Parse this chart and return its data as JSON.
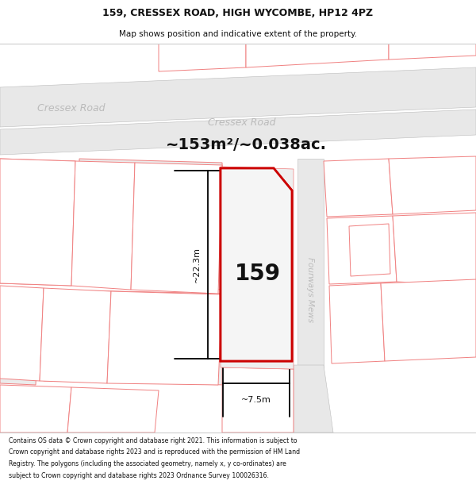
{
  "title_line1": "159, CRESSEX ROAD, HIGH WYCOMBE, HP12 4PZ",
  "title_line2": "Map shows position and indicative extent of the property.",
  "area_label": "~153m²/~0.038ac.",
  "property_number": "159",
  "dim_vertical": "~22.3m",
  "dim_horizontal": "~7.5m",
  "road_label_left": "Cressex Road",
  "road_label_center": "Cressex Road",
  "road_label_mews": "Fourways Mews",
  "footer": "Contains OS data © Crown copyright and database right 2021. This information is subject to Crown copyright and database rights 2023 and is reproduced with the permission of HM Land Registry. The polygons (including the associated geometry, namely x, y co-ordinates) are subject to Crown copyright and database rights 2023 Ordnance Survey 100026316.",
  "bg_color": "#ffffff",
  "road_fill": "#e8e8e8",
  "parcel_fill": "#f0f0f0",
  "highlight_color": "#cc0000",
  "parcel_edge": "#f08080",
  "road_edge": "#bbbbbb",
  "title_bg": "#ffffff",
  "footer_bg": "#ffffff",
  "dim_line_color": "#000000",
  "text_dark": "#111111",
  "road_text_color": "#bbbbbb"
}
